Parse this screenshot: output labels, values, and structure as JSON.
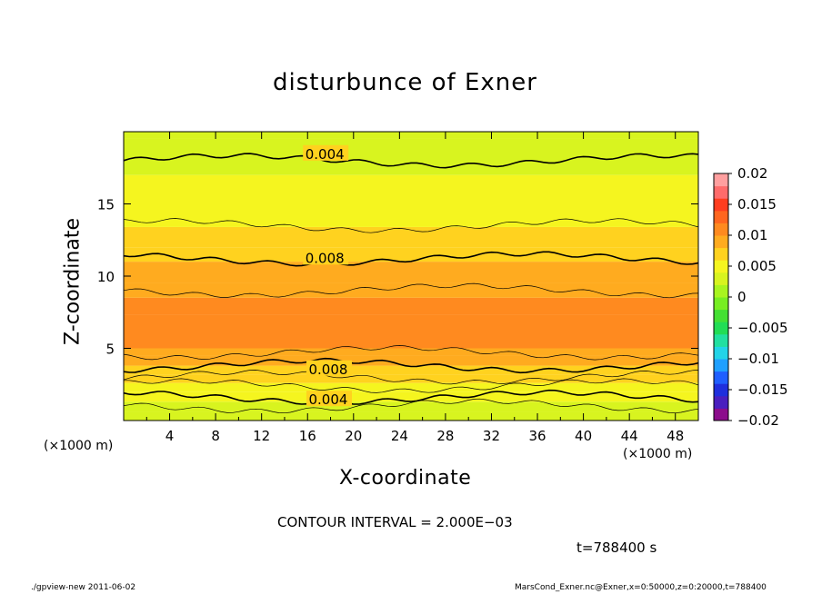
{
  "chart_data": {
    "type": "heatmap",
    "title": "disturbunce of Exner",
    "xlabel": "X-coordinate",
    "ylabel": "Z-coordinate",
    "x_unit": "(×1000 m)",
    "xlim": [
      0,
      50
    ],
    "ylim": [
      0,
      20
    ],
    "x_ticks": [
      4,
      8,
      12,
      16,
      20,
      24,
      28,
      32,
      36,
      40,
      44,
      48
    ],
    "y_ticks": [
      5,
      10,
      15
    ],
    "contour_labels": [
      {
        "text": "0.004",
        "x": 17.5,
        "z": 18.5
      },
      {
        "text": "0.008",
        "x": 17.5,
        "z": 11.3
      },
      {
        "text": "0.008",
        "x": 17.8,
        "z": 3.6
      },
      {
        "text": "0.004",
        "x": 17.8,
        "z": 1.5
      }
    ],
    "colorbar": {
      "ticks": [
        "0.02",
        "0.015",
        "0.01",
        "0.005",
        "0",
        "−0.005",
        "−0.01",
        "−0.015",
        "−0.02"
      ],
      "colors": [
        "#8c0d8c",
        "#4a1fbf",
        "#1f2fdd",
        "#1f5fff",
        "#1fa0ff",
        "#22d4e8",
        "#22e0a0",
        "#22dd55",
        "#44e033",
        "#77ee22",
        "#a8f51f",
        "#d8f41f",
        "#f5f51f",
        "#ffd21f",
        "#ffab1f",
        "#ff8a1f",
        "#ff661f",
        "#ff3d1f",
        "#ff6b6b",
        "#ff9f9f"
      ]
    },
    "z_band_levels": [
      [
        0.0,
        0.002
      ],
      [
        0.6,
        0.003
      ],
      [
        1.3,
        0.004
      ],
      [
        2.0,
        0.005
      ],
      [
        2.6,
        0.006
      ],
      [
        3.2,
        0.007
      ],
      [
        3.8,
        0.008
      ],
      [
        4.5,
        0.009
      ],
      [
        5.0,
        0.01
      ],
      [
        7.3,
        0.01
      ],
      [
        8.5,
        0.009
      ],
      [
        9.5,
        0.008
      ],
      [
        11.0,
        0.007
      ],
      [
        12.0,
        0.006
      ],
      [
        13.4,
        0.005
      ],
      [
        15.0,
        0.004
      ],
      [
        17.0,
        0.003
      ],
      [
        19.5,
        0.002
      ]
    ]
  },
  "labels": {
    "contour_interval": "CONTOUR INTERVAL = 2.000E−03",
    "time": "t=788400  s",
    "footer_left": "./gpview-new  2011-06-02",
    "footer_right": "MarsCond_Exner.nc@Exner,x=0:50000,z=0:20000,t=788400"
  }
}
